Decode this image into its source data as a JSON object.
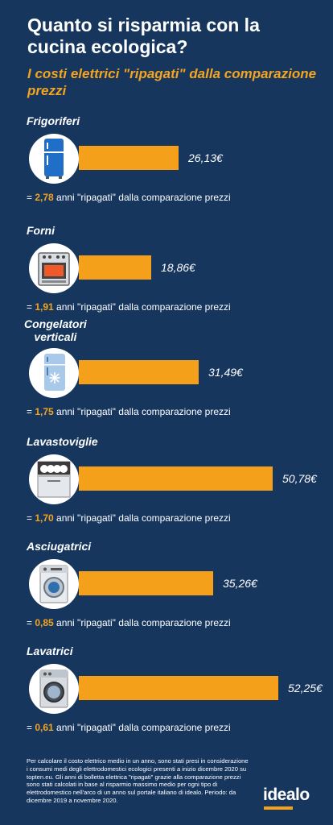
{
  "header": {
    "title": "Quanto si risparmia con la cucina ecologica?",
    "subtitle": "I costi elettrici \"ripagati\" dalla comparazione prezzi"
  },
  "chart_data": {
    "type": "bar",
    "orientation": "horizontal",
    "title": "Quanto si risparmia con la cucina ecologica?",
    "subtitle": "I costi elettrici \"ripagati\" dalla comparazione prezzi",
    "categories": [
      "Frigoriferi",
      "Forni",
      "Congelatori verticali",
      "Lavastoviglie",
      "Asciugatrici",
      "Lavatrici"
    ],
    "values": [
      26.13,
      18.86,
      31.49,
      50.78,
      35.26,
      52.25
    ],
    "value_labels": [
      "26,13€",
      "18,86€",
      "31,49€",
      "50,78€",
      "35,26€",
      "52,25€"
    ],
    "years": [
      "2,78",
      "1,91",
      "1,75",
      "1,70",
      "0,85",
      "0,61"
    ],
    "unit": "€",
    "colors": {
      "bar": "#f5a01a",
      "background": "#16365e",
      "accent_text": "#f5a41e"
    }
  },
  "labels": {
    "rows": [
      "Frigoriferi",
      "Forni",
      "Congelatori\nverticali",
      "Lavastoviglie",
      "Asciugatrici",
      "Lavatrici"
    ],
    "years_prefix": "= ",
    "years_suffix": " anni \"ripagati\" dalla comparazione prezzi"
  },
  "icons": [
    "fridge-icon",
    "oven-icon",
    "freezer-icon",
    "dishwasher-icon",
    "dryer-icon",
    "washing-machine-icon"
  ],
  "footnote": "Per calcolare il costo elettrico medio in un anno, sono stati presi in considerazione i consumi medi degli elettrodomestici ecologici presenti a inizio dicembre 2020 su topten.eu. Gli anni di bolletta elettrica \"ripagati\" grazie alla comparazione prezzi sono stati calcolati in base al risparmio massimo medio per ogni tipo di elettrodomestico nell'arco di un anno sul portale italiano di idealo. Periodo: da dicembre 2019 a novembre 2020.",
  "brand": {
    "logo": "idealo"
  }
}
